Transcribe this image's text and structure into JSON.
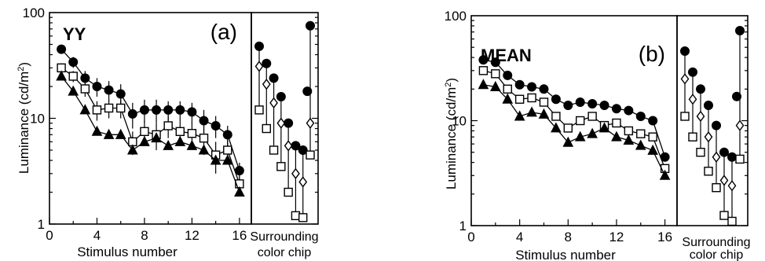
{
  "chart_data": [
    {
      "type": "line",
      "panel_tag": "YY",
      "panel_letter": "(a)",
      "xlabel": "Stimulus number",
      "ylabel": "Luminance (cd/m²)",
      "ylabel_main": "Luminance (cd/m",
      "ylabel_sup": "2",
      "ylabel_end": ")",
      "yscale": "log",
      "ylim": [
        1,
        100
      ],
      "xlim": [
        0,
        17
      ],
      "x_ticks": [
        0,
        4,
        8,
        12,
        16
      ],
      "y_ticks": [
        1,
        10,
        100
      ],
      "inset_label_line1": "Surrounding",
      "inset_label_line2": "color chip",
      "main": {
        "x": [
          1,
          2,
          3,
          4,
          5,
          6,
          7,
          8,
          9,
          10,
          11,
          12,
          13,
          14,
          15,
          16
        ],
        "series": [
          {
            "marker": "circle-filled",
            "values": [
              45,
              34,
              24,
              20,
              18.5,
              17,
              11,
              12,
              12,
              12,
              12,
              11.5,
              9.5,
              8.5,
              7,
              3.2
            ],
            "err": [
              4,
              4,
              4,
              4,
              4,
              4,
              3,
              3,
              3,
              2.5,
              2.5,
              2.5,
              2.5,
              2,
              1.5,
              0.6
            ]
          },
          {
            "marker": "square-open",
            "values": [
              30,
              25,
              19,
              12,
              12.5,
              12.5,
              6,
              7.5,
              7,
              8.5,
              7.5,
              7.2,
              6.5,
              4.5,
              5,
              2.4
            ],
            "err": [
              3,
              3,
              3,
              2.5,
              2.5,
              2.5,
              1.5,
              2,
              2,
              2,
              2,
              2,
              2,
              1.5,
              1.2,
              0.5
            ]
          },
          {
            "marker": "triangle-filled",
            "values": [
              25,
              18,
              12,
              7.5,
              7,
              7,
              5,
              6,
              6.5,
              5.5,
              6,
              5.5,
              5,
              4,
              4,
              2
            ]
          }
        ]
      },
      "inset": {
        "x": [
          1,
          2,
          3,
          4,
          5,
          6,
          7,
          8
        ],
        "series": [
          {
            "marker": "circle-filled",
            "values": [
              48,
              33,
              24,
              16,
              9,
              5.5,
              5,
              75
            ]
          },
          {
            "marker": "diamond-open",
            "values": [
              31,
              21,
              14,
              9,
              5.5,
              3,
              2.5,
              9
            ]
          },
          {
            "marker": "square-open",
            "values": [
              12,
              8,
              5,
              3.5,
              2,
              1.2,
              1.15,
              4.5
            ]
          }
        ],
        "extra_circle": {
          "x": 7.6,
          "value": 18
        }
      }
    },
    {
      "type": "line",
      "panel_tag": "MEAN",
      "panel_letter": "(b)",
      "xlabel": "Stimulus number",
      "ylabel": "Luminance (cd/m²)",
      "ylabel_main": "Luminance (cd/m",
      "ylabel_sup": "2",
      "ylabel_end": ")",
      "yscale": "log",
      "ylim": [
        1,
        100
      ],
      "xlim": [
        0,
        17
      ],
      "x_ticks": [
        0,
        4,
        8,
        12,
        16
      ],
      "y_ticks": [
        1,
        10,
        100
      ],
      "inset_label_line1": "Surrounding",
      "inset_label_line2": "color chip",
      "main": {
        "x": [
          1,
          2,
          3,
          4,
          5,
          6,
          7,
          8,
          9,
          10,
          11,
          12,
          13,
          14,
          15,
          16
        ],
        "series": [
          {
            "marker": "circle-filled",
            "values": [
              38,
              36,
              27,
              22,
              21,
              20,
              16,
              14,
              15,
              14.5,
              14,
              13,
              12.5,
              11,
              10,
              4.5
            ]
          },
          {
            "marker": "square-open",
            "values": [
              30,
              28,
              20,
              16,
              16.5,
              15,
              11,
              8.5,
              10,
              11,
              9,
              9.5,
              8,
              7.5,
              7,
              3.5
            ]
          },
          {
            "marker": "triangle-filled",
            "values": [
              22,
              21,
              16,
              11,
              12,
              11.5,
              8.5,
              6.2,
              7,
              7.5,
              8.5,
              7,
              6.5,
              5.8,
              5.2,
              3
            ]
          }
        ]
      },
      "inset": {
        "x": [
          1,
          2,
          3,
          4,
          5,
          6,
          7,
          8
        ],
        "series": [
          {
            "marker": "circle-filled",
            "values": [
              46,
              29,
              20,
              14,
              9,
              5,
              4.5,
              72
            ]
          },
          {
            "marker": "diamond-open",
            "values": [
              25,
              16,
              11,
              7,
              4.5,
              2.7,
              2.4,
              9
            ]
          },
          {
            "marker": "square-open",
            "values": [
              11,
              7,
              5,
              3.3,
              2.3,
              1.25,
              1.1,
              4.3
            ]
          }
        ],
        "extra_circle": {
          "x": 7.6,
          "value": 17
        }
      }
    }
  ]
}
